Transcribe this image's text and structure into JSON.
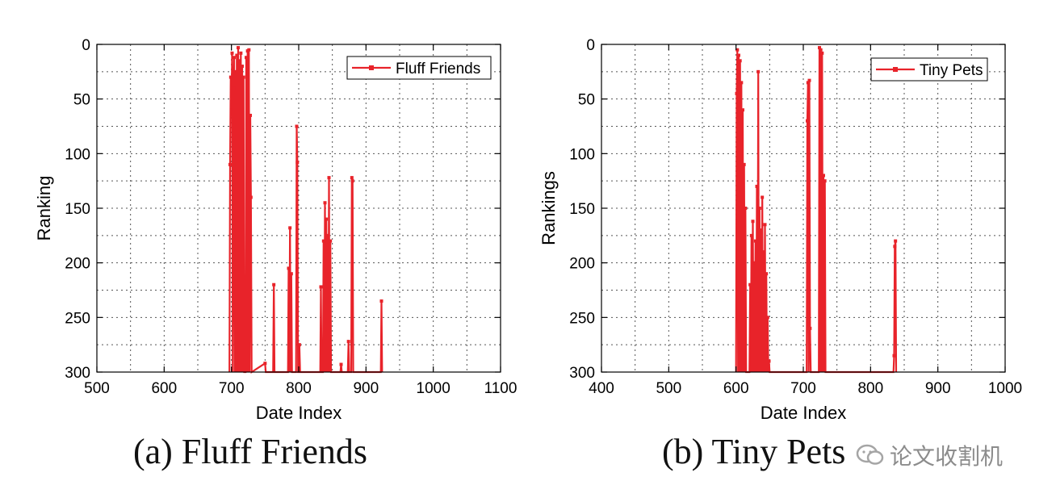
{
  "figure": {
    "panels": [
      {
        "caption": "(a) Fluff Friends"
      },
      {
        "caption": "(b) Tiny Pets"
      }
    ],
    "watermark": {
      "text": "论文收割机",
      "icon": "wechat-icon"
    }
  },
  "colors": {
    "series": "#e8232a",
    "axis": "#000000",
    "grid": "#555555"
  },
  "chart_data": [
    {
      "type": "line",
      "title": "",
      "xlabel": "Date Index",
      "ylabel": "Ranking",
      "xlim": [
        500,
        1100
      ],
      "ylim": [
        300,
        0
      ],
      "y_inverted": true,
      "xticks": [
        500,
        600,
        700,
        800,
        900,
        1000,
        1100
      ],
      "yticks": [
        0,
        50,
        100,
        150,
        200,
        250,
        300
      ],
      "grid": true,
      "legend": "top-right",
      "series": [
        {
          "name": "Fluff Friends",
          "marker": "square",
          "points": [
            [
              697,
              300
            ],
            [
              698,
              110
            ],
            [
              699,
              30
            ],
            [
              700,
              60
            ],
            [
              701,
              8
            ],
            [
              702,
              300
            ],
            [
              703,
              40
            ],
            [
              704,
              12
            ],
            [
              705,
              300
            ],
            [
              706,
              25
            ],
            [
              707,
              300
            ],
            [
              708,
              10
            ],
            [
              709,
              300
            ],
            [
              710,
              3
            ],
            [
              711,
              300
            ],
            [
              712,
              15
            ],
            [
              713,
              300
            ],
            [
              714,
              8
            ],
            [
              715,
              300
            ],
            [
              716,
              20
            ],
            [
              717,
              300
            ],
            [
              718,
              30
            ],
            [
              719,
              300
            ],
            [
              720,
              300
            ],
            [
              721,
              300
            ],
            [
              722,
              12
            ],
            [
              723,
              300
            ],
            [
              724,
              6
            ],
            [
              725,
              300
            ],
            [
              726,
              5
            ],
            [
              727,
              300
            ],
            [
              728,
              65
            ],
            [
              729,
              140
            ],
            [
              730,
              300
            ],
            [
              750,
              292
            ],
            [
              751,
              300
            ],
            [
              762,
              300
            ],
            [
              763,
              220
            ],
            [
              764,
              300
            ],
            [
              784,
              300
            ],
            [
              785,
              205
            ],
            [
              786,
              300
            ],
            [
              787,
              168
            ],
            [
              788,
              300
            ],
            [
              789,
              210
            ],
            [
              790,
              300
            ],
            [
              796,
              300
            ],
            [
              797,
              75
            ],
            [
              798,
              108
            ],
            [
              799,
              300
            ],
            [
              800,
              300
            ],
            [
              801,
              275
            ],
            [
              802,
              300
            ],
            [
              832,
              300
            ],
            [
              833,
              222
            ],
            [
              834,
              300
            ],
            [
              836,
              300
            ],
            [
              837,
              180
            ],
            [
              838,
              300
            ],
            [
              839,
              145
            ],
            [
              840,
              300
            ],
            [
              841,
              160
            ],
            [
              842,
              300
            ],
            [
              843,
              175
            ],
            [
              844,
              300
            ],
            [
              845,
              122
            ],
            [
              846,
              300
            ],
            [
              847,
              180
            ],
            [
              848,
              300
            ],
            [
              849,
              300
            ],
            [
              850,
              300
            ],
            [
              862,
              300
            ],
            [
              863,
              293
            ],
            [
              864,
              300
            ],
            [
              873,
              300
            ],
            [
              874,
              272
            ],
            [
              875,
              300
            ],
            [
              878,
              300
            ],
            [
              879,
              122
            ],
            [
              880,
              125
            ],
            [
              881,
              300
            ],
            [
              882,
              300
            ],
            [
              922,
              300
            ],
            [
              923,
              235
            ],
            [
              924,
              300
            ]
          ]
        }
      ]
    },
    {
      "type": "line",
      "title": "",
      "xlabel": "Date Index",
      "ylabel": "Rankings",
      "xlim": [
        400,
        1000
      ],
      "ylim": [
        300,
        0
      ],
      "y_inverted": true,
      "xticks": [
        400,
        500,
        600,
        700,
        800,
        900,
        1000
      ],
      "yticks": [
        0,
        50,
        100,
        150,
        200,
        250,
        300
      ],
      "grid": true,
      "legend": "top-right",
      "series": [
        {
          "name": "Tiny Pets",
          "marker": "square",
          "points": [
            [
              600,
              300
            ],
            [
              601,
              45
            ],
            [
              602,
              5
            ],
            [
              603,
              300
            ],
            [
              604,
              10
            ],
            [
              605,
              300
            ],
            [
              606,
              15
            ],
            [
              607,
              300
            ],
            [
              608,
              35
            ],
            [
              609,
              300
            ],
            [
              610,
              60
            ],
            [
              611,
              300
            ],
            [
              612,
              110
            ],
            [
              613,
              300
            ],
            [
              614,
              150
            ],
            [
              615,
              300
            ],
            [
              616,
              300
            ],
            [
              618,
              300
            ],
            [
              620,
              300
            ],
            [
              621,
              220
            ],
            [
              622,
              300
            ],
            [
              623,
              175
            ],
            [
              624,
              300
            ],
            [
              625,
              162
            ],
            [
              626,
              300
            ],
            [
              627,
              200
            ],
            [
              628,
              300
            ],
            [
              629,
              180
            ],
            [
              630,
              300
            ],
            [
              631,
              130
            ],
            [
              632,
              300
            ],
            [
              633,
              25
            ],
            [
              634,
              300
            ],
            [
              635,
              150
            ],
            [
              636,
              300
            ],
            [
              637,
              170
            ],
            [
              638,
              300
            ],
            [
              639,
              140
            ],
            [
              640,
              300
            ],
            [
              641,
              190
            ],
            [
              642,
              300
            ],
            [
              643,
              165
            ],
            [
              644,
              300
            ],
            [
              645,
              210
            ],
            [
              646,
              300
            ],
            [
              647,
              250
            ],
            [
              648,
              300
            ],
            [
              649,
              290
            ],
            [
              650,
              300
            ],
            [
              705,
              300
            ],
            [
              706,
              70
            ],
            [
              707,
              35
            ],
            [
              708,
              300
            ],
            [
              709,
              33
            ],
            [
              710,
              260
            ],
            [
              711,
              300
            ],
            [
              723,
              300
            ],
            [
              724,
              3
            ],
            [
              725,
              300
            ],
            [
              726,
              5
            ],
            [
              727,
              300
            ],
            [
              728,
              8
            ],
            [
              729,
              300
            ],
            [
              730,
              120
            ],
            [
              731,
              300
            ],
            [
              732,
              125
            ],
            [
              733,
              300
            ],
            [
              834,
              300
            ],
            [
              835,
              285
            ],
            [
              836,
              185
            ],
            [
              837,
              180
            ],
            [
              838,
              300
            ]
          ]
        }
      ]
    }
  ]
}
